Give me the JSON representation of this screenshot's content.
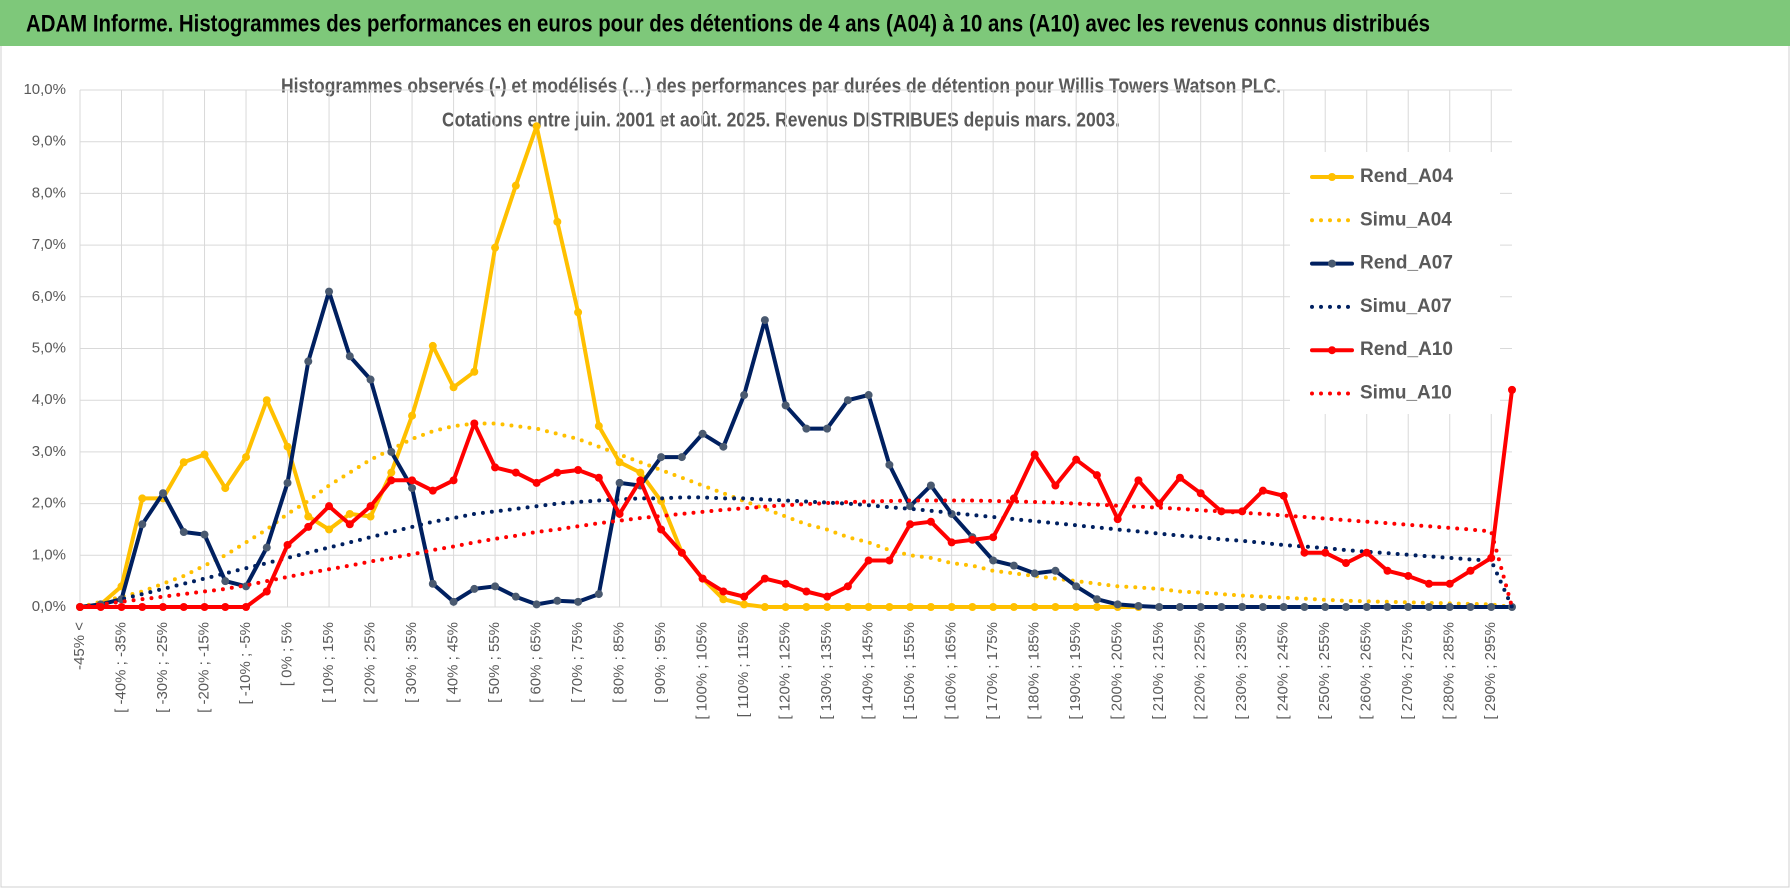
{
  "chart_data": {
    "type": "line",
    "title": "ADAM Informe. Histogrammes des performances en euros pour des détentions de 4 ans (A04) à 10 ans (A10) avec les revenus connus distribués",
    "subtitle": [
      "Histogrammes observés (-) et modélisés (…) des performances par durées de détention pour Willis Towers Watson PLC.",
      "Cotations entre juin. 2001 et août. 2025. Revenus DISTRIBUES depuis mars. 2003."
    ],
    "categories": [
      "-45% <",
      null,
      "[ -40% ; -35%",
      null,
      "[ -30% ; -25%",
      null,
      "[ -20% ; -15%",
      null,
      "[ -10% ; -5%",
      null,
      "[ 0% ; 5%",
      null,
      "[ 10% ; 15%",
      null,
      "[ 20% ; 25%",
      null,
      "[ 30% ; 35%",
      null,
      "[ 40% ; 45%",
      null,
      "[ 50% ; 55%",
      null,
      "[ 60% ; 65%",
      null,
      "[ 70% ; 75%",
      null,
      "[ 80% ; 85%",
      null,
      "[ 90% ; 95%",
      null,
      "[ 100% ; 105%",
      null,
      "[ 110% ; 115%",
      null,
      "[ 120% ; 125%",
      null,
      "[ 130% ; 135%",
      null,
      "[ 140% ; 145%",
      null,
      "[ 150% ; 155%",
      null,
      "[ 160% ; 165%",
      null,
      "[ 170% ; 175%",
      null,
      "[ 180% ; 185%",
      null,
      "[ 190% ; 195%",
      null,
      "[ 200% ; 205%",
      null,
      "[ 210% ; 215%",
      null,
      "[ 220% ; 225%",
      null,
      "[ 230% ; 235%",
      null,
      "[ 240% ; 245%",
      null,
      "[ 250% ; 255%",
      null,
      "[ 260% ; 265%",
      null,
      "[ 270% ; 275%",
      null,
      "[ 280% ; 285%",
      null,
      "[ 290% ; 295%",
      null
    ],
    "series": [
      {
        "name": "Rend_A04",
        "color": "#ffc000",
        "style": "solid",
        "markers": true,
        "values": [
          0,
          0.05,
          0.4,
          2.1,
          2.1,
          2.8,
          2.95,
          2.3,
          2.9,
          4.0,
          3.1,
          1.75,
          1.5,
          1.8,
          1.75,
          2.6,
          3.7,
          5.05,
          4.25,
          4.55,
          6.95,
          8.15,
          9.3,
          7.45,
          5.7,
          3.5,
          2.8,
          2.6,
          2.05,
          1.05,
          0.55,
          0.15,
          0.05,
          0,
          0,
          0,
          0,
          0,
          0,
          0,
          0,
          0,
          0,
          0,
          0,
          0,
          0,
          0,
          0,
          0,
          0,
          0,
          null,
          null,
          null,
          null,
          null,
          null,
          null,
          null,
          null,
          null,
          null,
          null,
          null,
          null,
          null,
          null,
          null,
          null
        ]
      },
      {
        "name": "Simu_A04",
        "color": "#ffc000",
        "style": "dotted",
        "markers": false,
        "values": [
          0,
          0.1,
          0.2,
          0.3,
          0.45,
          0.6,
          0.8,
          1.0,
          1.25,
          1.5,
          1.8,
          2.05,
          2.35,
          2.6,
          2.85,
          3.05,
          3.25,
          3.4,
          3.5,
          3.55,
          3.55,
          3.5,
          3.45,
          3.35,
          3.25,
          3.1,
          2.95,
          2.8,
          2.65,
          2.5,
          2.35,
          2.2,
          2.05,
          1.9,
          1.75,
          1.6,
          1.5,
          1.35,
          1.25,
          1.1,
          1.0,
          0.95,
          0.85,
          0.8,
          0.7,
          0.65,
          0.6,
          0.55,
          0.5,
          0.45,
          0.4,
          0.38,
          0.35,
          0.3,
          0.28,
          0.25,
          0.22,
          0.2,
          0.18,
          0.16,
          0.14,
          0.12,
          0.11,
          0.1,
          0.09,
          0.08,
          0.07,
          0.06,
          0.05,
          0
        ]
      },
      {
        "name": "Rend_A07",
        "color": "#002060",
        "style": "solid",
        "markers": true,
        "values": [
          0,
          0.05,
          0.15,
          1.6,
          2.2,
          1.45,
          1.4,
          0.5,
          0.4,
          1.15,
          2.4,
          4.75,
          6.1,
          4.85,
          4.4,
          3.0,
          2.3,
          0.45,
          0.1,
          0.35,
          0.4,
          0.2,
          0.05,
          0.12,
          0.1,
          0.25,
          2.4,
          2.35,
          2.9,
          2.9,
          3.35,
          3.1,
          4.1,
          5.55,
          3.9,
          3.45,
          3.45,
          4.0,
          4.1,
          2.75,
          1.95,
          2.35,
          1.8,
          1.35,
          0.9,
          0.8,
          0.65,
          0.7,
          0.4,
          0.15,
          0.05,
          0.02,
          0,
          0,
          0,
          0,
          0,
          0,
          0,
          0,
          0,
          0,
          0,
          0,
          0,
          0,
          0,
          0,
          0,
          0
        ]
      },
      {
        "name": "Simu_A07",
        "color": "#002060",
        "style": "dotted",
        "markers": false,
        "values": [
          0,
          0.05,
          0.15,
          0.25,
          0.35,
          0.45,
          0.55,
          0.65,
          0.75,
          0.85,
          0.95,
          1.05,
          1.15,
          1.25,
          1.35,
          1.45,
          1.55,
          1.65,
          1.72,
          1.8,
          1.85,
          1.9,
          1.95,
          2.0,
          2.03,
          2.06,
          2.08,
          2.1,
          2.1,
          2.12,
          2.12,
          2.1,
          2.1,
          2.08,
          2.06,
          2.04,
          2.02,
          2.0,
          1.97,
          1.93,
          1.9,
          1.86,
          1.82,
          1.78,
          1.74,
          1.7,
          1.66,
          1.62,
          1.58,
          1.54,
          1.5,
          1.46,
          1.42,
          1.38,
          1.35,
          1.31,
          1.28,
          1.24,
          1.2,
          1.17,
          1.14,
          1.1,
          1.07,
          1.04,
          1.01,
          0.98,
          0.95,
          0.92,
          0.9,
          0
        ]
      },
      {
        "name": "Rend_A10",
        "color": "#ff0000",
        "style": "solid",
        "markers": true,
        "values": [
          0,
          0,
          0,
          0,
          0,
          0,
          0,
          0,
          0,
          0.3,
          1.2,
          1.55,
          1.95,
          1.6,
          1.95,
          2.45,
          2.45,
          2.25,
          2.45,
          3.55,
          2.7,
          2.6,
          2.4,
          2.6,
          2.65,
          2.5,
          1.8,
          2.45,
          1.5,
          1.05,
          0.55,
          0.3,
          0.2,
          0.55,
          0.45,
          0.3,
          0.2,
          0.4,
          0.9,
          0.9,
          1.6,
          1.65,
          1.25,
          1.3,
          1.35,
          2.1,
          2.95,
          2.35,
          2.85,
          2.55,
          1.7,
          2.45,
          2.0,
          2.5,
          2.2,
          1.85,
          1.85,
          2.25,
          2.15,
          1.05,
          1.05,
          0.85,
          1.05,
          0.7,
          0.6,
          0.45,
          0.45,
          0.7,
          0.95,
          4.2
        ]
      },
      {
        "name": "Simu_A10",
        "color": "#ff0000",
        "style": "dotted",
        "markers": false,
        "values": [
          0,
          0.05,
          0.1,
          0.15,
          0.2,
          0.25,
          0.3,
          0.35,
          0.42,
          0.5,
          0.58,
          0.66,
          0.73,
          0.8,
          0.88,
          0.95,
          1.02,
          1.1,
          1.17,
          1.25,
          1.32,
          1.38,
          1.45,
          1.5,
          1.56,
          1.62,
          1.67,
          1.72,
          1.76,
          1.8,
          1.84,
          1.88,
          1.91,
          1.94,
          1.97,
          1.99,
          2.01,
          2.03,
          2.04,
          2.05,
          2.06,
          2.06,
          2.06,
          2.06,
          2.05,
          2.04,
          2.03,
          2.02,
          2.0,
          1.98,
          1.96,
          1.94,
          1.92,
          1.9,
          1.87,
          1.85,
          1.82,
          1.8,
          1.77,
          1.74,
          1.71,
          1.68,
          1.65,
          1.62,
          1.59,
          1.56,
          1.53,
          1.5,
          1.46,
          0
        ]
      }
    ],
    "ylim": [
      0,
      10
    ],
    "yticks": [
      {
        "value": 0,
        "label": "0,0%"
      },
      {
        "value": 1,
        "label": "1,0%"
      },
      {
        "value": 2,
        "label": "2,0%"
      },
      {
        "value": 3,
        "label": "3,0%"
      },
      {
        "value": 4,
        "label": "4,0%"
      },
      {
        "value": 5,
        "label": "5,0%"
      },
      {
        "value": 6,
        "label": "6,0%"
      },
      {
        "value": 7,
        "label": "7,0%"
      },
      {
        "value": 8,
        "label": "8,0%"
      },
      {
        "value": 9,
        "label": "9,0%"
      },
      {
        "value": 10,
        "label": "10,0%"
      }
    ],
    "grid": true,
    "legend": "right"
  }
}
